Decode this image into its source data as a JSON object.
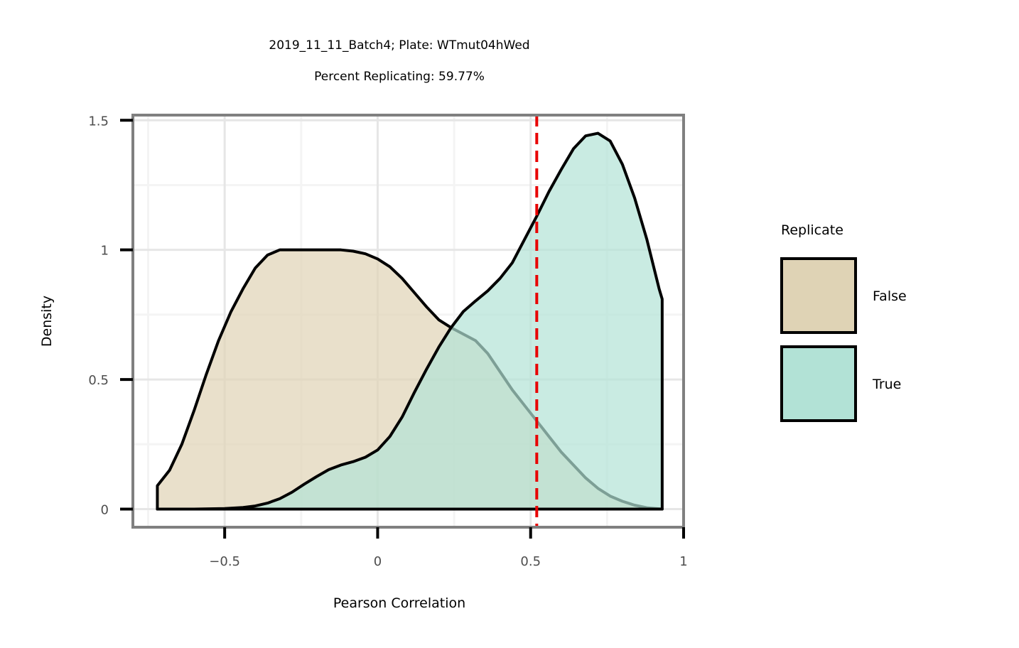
{
  "chart_data": {
    "type": "area",
    "title": "2019_11_11_Batch4; Plate: WTmut04hWed",
    "subtitle": "Percent Replicating: 59.77%",
    "xlabel": "Pearson Correlation",
    "ylabel": "Density",
    "xlim": [
      -0.8,
      1.0
    ],
    "ylim": [
      -0.07,
      1.52
    ],
    "x_ticks": [
      -0.5,
      0,
      0.5,
      1
    ],
    "x_tick_labels": [
      "−0.5",
      "0",
      "0.5",
      "1"
    ],
    "y_ticks": [
      0,
      0.5,
      1,
      1.5
    ],
    "y_tick_labels": [
      "0",
      "0.5",
      "1",
      "1.5"
    ],
    "grid": true,
    "legend": {
      "title": "Replicate",
      "position": "right"
    },
    "threshold_line": {
      "x": 0.52,
      "color": "#e80000",
      "style": "dashed"
    },
    "series": [
      {
        "name": "False",
        "fill": "#dfd3b5",
        "x": [
          -0.72,
          -0.68,
          -0.64,
          -0.6,
          -0.56,
          -0.52,
          -0.48,
          -0.44,
          -0.4,
          -0.36,
          -0.32,
          -0.28,
          -0.24,
          -0.2,
          -0.16,
          -0.12,
          -0.08,
          -0.04,
          0.0,
          0.04,
          0.08,
          0.12,
          0.16,
          0.2,
          0.24,
          0.28,
          0.32,
          0.36,
          0.4,
          0.44,
          0.48,
          0.52,
          0.56,
          0.6,
          0.64,
          0.68,
          0.72,
          0.76,
          0.8,
          0.84,
          0.88,
          0.93
        ],
        "values": [
          0.09,
          0.15,
          0.25,
          0.38,
          0.52,
          0.65,
          0.76,
          0.85,
          0.93,
          0.98,
          1.0,
          1.0,
          1.0,
          1.0,
          1.0,
          1.0,
          0.995,
          0.985,
          0.965,
          0.935,
          0.89,
          0.835,
          0.78,
          0.73,
          0.7,
          0.675,
          0.65,
          0.6,
          0.53,
          0.46,
          0.4,
          0.34,
          0.28,
          0.22,
          0.17,
          0.12,
          0.08,
          0.05,
          0.03,
          0.015,
          0.005,
          0.0
        ]
      },
      {
        "name": "True",
        "fill": "#b2e2d6",
        "x": [
          -0.72,
          -0.6,
          -0.5,
          -0.44,
          -0.4,
          -0.36,
          -0.32,
          -0.28,
          -0.24,
          -0.2,
          -0.16,
          -0.12,
          -0.08,
          -0.04,
          0.0,
          0.04,
          0.08,
          0.12,
          0.16,
          0.2,
          0.24,
          0.28,
          0.32,
          0.36,
          0.4,
          0.44,
          0.48,
          0.52,
          0.56,
          0.6,
          0.64,
          0.68,
          0.72,
          0.76,
          0.8,
          0.84,
          0.88,
          0.92,
          0.93
        ],
        "values": [
          0.0,
          0.0,
          0.002,
          0.006,
          0.012,
          0.023,
          0.04,
          0.065,
          0.096,
          0.125,
          0.152,
          0.17,
          0.183,
          0.2,
          0.228,
          0.28,
          0.355,
          0.45,
          0.54,
          0.625,
          0.7,
          0.762,
          0.803,
          0.842,
          0.89,
          0.95,
          1.04,
          1.13,
          1.225,
          1.31,
          1.39,
          1.44,
          1.45,
          1.42,
          1.33,
          1.2,
          1.04,
          0.85,
          0.81
        ]
      }
    ]
  }
}
